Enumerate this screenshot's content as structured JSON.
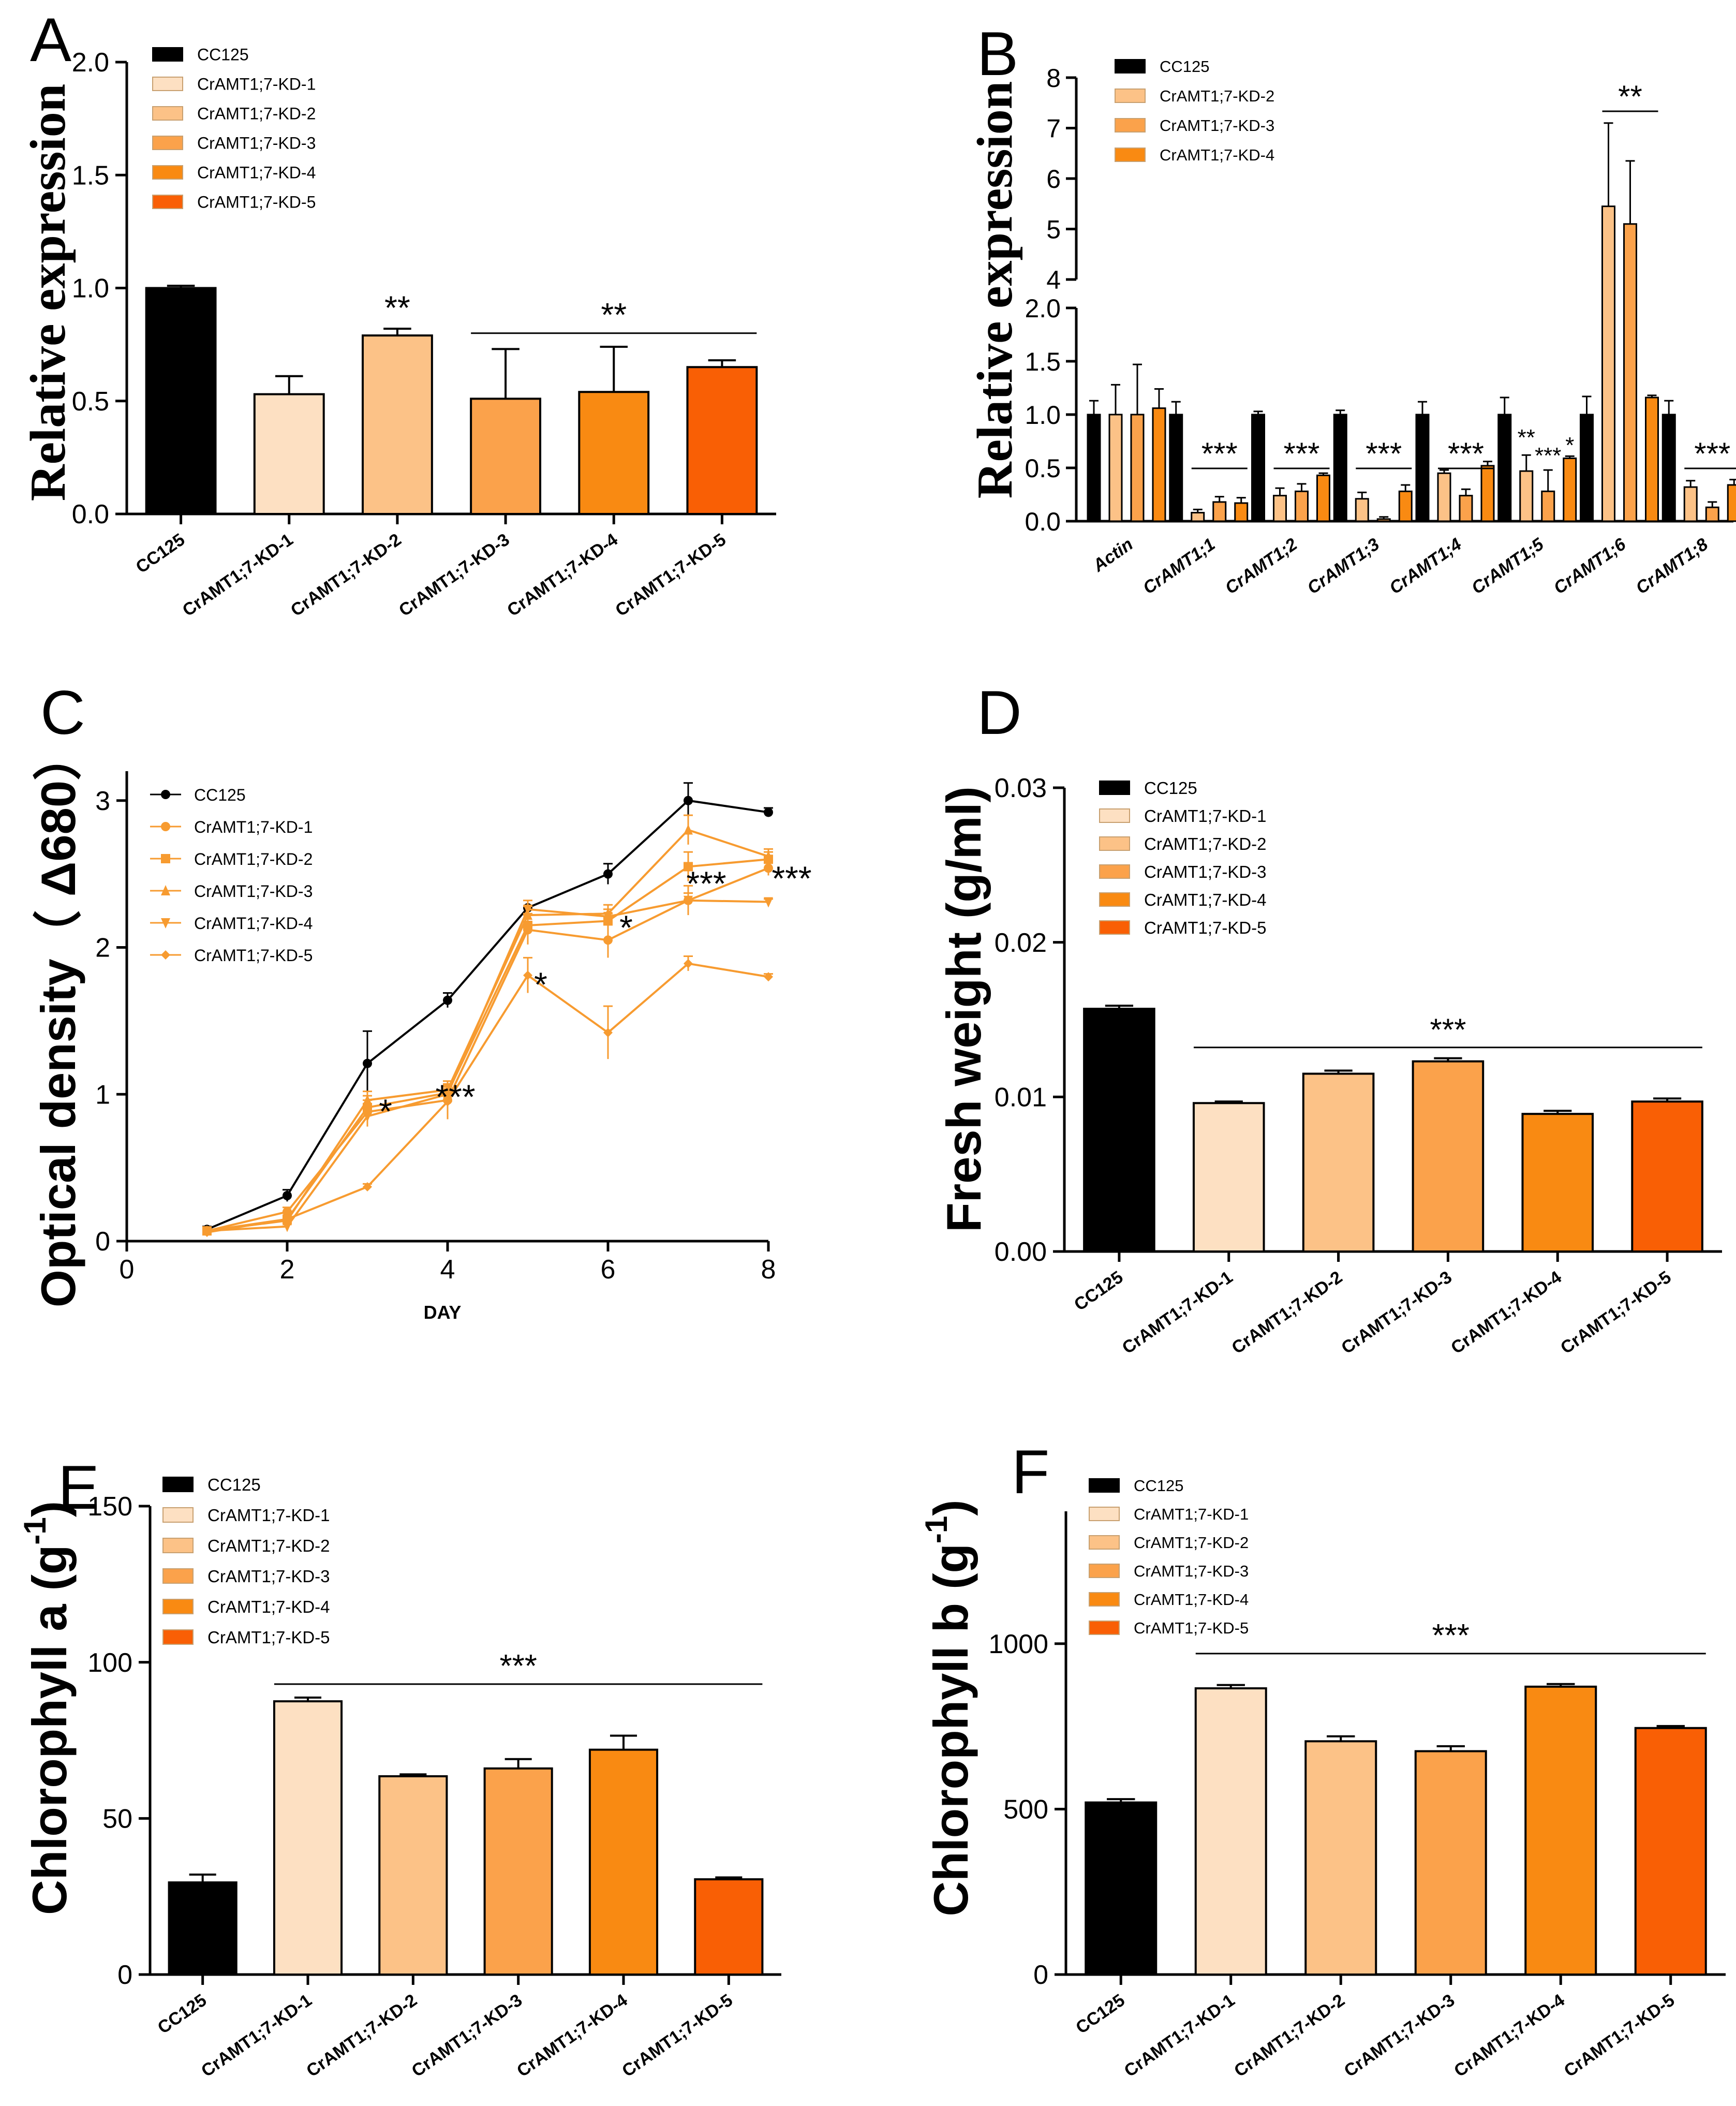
{
  "colors": {
    "black": "#000000",
    "kd1": "#FDE0C2",
    "kd2": "#FCC287",
    "kd3": "#FBA24B",
    "kd4": "#F98A12",
    "kd5": "#F95F05",
    "lineOrange": "#F79B30"
  },
  "chart_data": [
    {
      "id": "A",
      "panel_label": "A",
      "type": "bar",
      "title": "",
      "ylabel": "Relative expression",
      "xlabel": "",
      "categories": [
        "CC125",
        "CrAMT1;7-KD-1",
        "CrAMT1;7-KD-2",
        "CrAMT1;7-KD-3",
        "CrAMT1;7-KD-4",
        "CrAMT1;7-KD-5"
      ],
      "values": [
        1.0,
        0.53,
        0.79,
        0.51,
        0.54,
        0.65
      ],
      "errors": [
        0.01,
        0.08,
        0.03,
        0.22,
        0.2,
        0.03
      ],
      "ylim": [
        0,
        2.0
      ],
      "yticks": [
        0.0,
        0.5,
        1.0,
        1.5,
        2.0
      ],
      "ytick_labels": [
        "0.0",
        "0.5",
        "1.0",
        "1.5",
        "2.0"
      ],
      "legend": [
        "CC125",
        "CrAMT1;7-KD-1",
        "CrAMT1;7-KD-2",
        "CrAMT1;7-KD-3",
        "CrAMT1;7-KD-4",
        "CrAMT1;7-KD-5"
      ],
      "legend_position": "top-left",
      "annotations": [
        {
          "text": "**",
          "over": [
            2,
            2
          ],
          "value": 0.83
        },
        {
          "text": "**",
          "over": [
            3,
            5
          ],
          "value": 0.8
        }
      ]
    },
    {
      "id": "B",
      "panel_label": "B",
      "type": "bar",
      "title": "",
      "ylabel": "Relative expression",
      "xlabel": "",
      "categories": [
        "Actin",
        "CrAMT1;1",
        "CrAMT1;2",
        "CrAMT1;3",
        "CrAMT1;4",
        "CrAMT1;5",
        "CrAMT1;6",
        "CrAMT1;8"
      ],
      "series": [
        {
          "name": "CC125",
          "values": [
            1.0,
            1.0,
            1.0,
            1.0,
            1.0,
            1.0,
            1.0,
            1.0
          ],
          "errors": [
            0.13,
            0.12,
            0.03,
            0.04,
            0.12,
            0.16,
            0.17,
            0.13
          ]
        },
        {
          "name": "CrAMT1;7-KD-2",
          "values": [
            1.0,
            0.08,
            0.24,
            0.21,
            0.45,
            0.47,
            5.45,
            0.32
          ],
          "errors": [
            0.28,
            0.03,
            0.07,
            0.06,
            0.03,
            0.15,
            1.65,
            0.06
          ]
        },
        {
          "name": "CrAMT1;7-KD-3",
          "values": [
            1.0,
            0.18,
            0.28,
            0.02,
            0.24,
            0.28,
            5.1,
            0.13
          ],
          "errors": [
            0.47,
            0.05,
            0.07,
            0.02,
            0.06,
            0.2,
            1.25,
            0.05
          ]
        },
        {
          "name": "CrAMT1;7-KD-4",
          "values": [
            1.06,
            0.17,
            0.43,
            0.28,
            0.52,
            0.59,
            1.16,
            0.34
          ],
          "errors": [
            0.18,
            0.05,
            0.02,
            0.06,
            0.04,
            0.02,
            0.02,
            0.05
          ]
        }
      ],
      "ylim": [
        0,
        8
      ],
      "axis_break": [
        2.0,
        4.0
      ],
      "yticks": [
        0.0,
        0.5,
        1.0,
        1.5,
        2.0,
        4,
        5,
        6,
        7,
        8
      ],
      "ytick_labels": [
        "0.0",
        "0.5",
        "1.0",
        "1.5",
        "2.0",
        "4",
        "5",
        "6",
        "7",
        "8"
      ],
      "legend": [
        "CC125",
        "CrAMT1;7-KD-2",
        "CrAMT1;7-KD-3",
        "CrAMT1;7-KD-4"
      ],
      "legend_position": "top-left",
      "annotations": [
        {
          "text": "***",
          "group": 1
        },
        {
          "text": "***",
          "group": 2
        },
        {
          "text": "***",
          "group": 3
        },
        {
          "text": "***",
          "group": 4
        },
        {
          "text": "**",
          "group": 5,
          "series": 1
        },
        {
          "text": "***",
          "group": 5,
          "series": 2
        },
        {
          "text": "*",
          "group": 5,
          "series": 3
        },
        {
          "text": "**",
          "group": 6
        },
        {
          "text": "***",
          "group": 7
        }
      ]
    },
    {
      "id": "C",
      "panel_label": "C",
      "type": "line",
      "title": "",
      "ylabel": "Optical density（ Δ680）",
      "xlabel": "DAY",
      "x": [
        1,
        2,
        3,
        4,
        5,
        6,
        7,
        8
      ],
      "series": [
        {
          "name": "CC125",
          "marker": "circle",
          "values": [
            0.08,
            0.31,
            1.21,
            1.64,
            2.27,
            2.5,
            3.0,
            2.92
          ],
          "errors": [
            0.02,
            0.04,
            0.22,
            0.05,
            0.0,
            0.07,
            0.12,
            0.03
          ]
        },
        {
          "name": "CrAMT1;7-KD-1",
          "marker": "circle",
          "values": [
            0.07,
            0.2,
            0.88,
            0.96,
            2.12,
            2.05,
            2.32,
            2.54
          ],
          "errors": [
            0.01,
            0.03,
            0.08,
            0.1,
            0.1,
            0.12,
            0.1,
            0.05
          ]
        },
        {
          "name": "CrAMT1;7-KD-2",
          "marker": "square",
          "values": [
            0.07,
            0.15,
            0.91,
            1.01,
            2.15,
            2.18,
            2.55,
            2.6
          ],
          "errors": [
            0.01,
            0.02,
            0.08,
            0.06,
            0.08,
            0.05,
            0.1,
            0.05
          ]
        },
        {
          "name": "CrAMT1;7-KD-3",
          "marker": "triangle-up",
          "values": [
            0.07,
            0.14,
            0.96,
            1.03,
            2.22,
            2.23,
            2.8,
            2.62
          ],
          "errors": [
            0.01,
            0.02,
            0.06,
            0.06,
            0.06,
            0.06,
            0.1,
            0.05
          ]
        },
        {
          "name": "CrAMT1;7-KD-4",
          "marker": "triangle-down",
          "values": [
            0.07,
            0.1,
            0.85,
            1.0,
            2.26,
            2.21,
            2.32,
            2.31
          ],
          "errors": [
            0.01,
            0.02,
            0.07,
            0.05,
            0.06,
            0.05,
            0.05,
            0.02
          ]
        },
        {
          "name": "CrAMT1;7-KD-5",
          "marker": "diamond",
          "values": [
            0.06,
            0.15,
            0.37,
            0.95,
            1.81,
            1.42,
            1.89,
            1.8
          ],
          "errors": [
            0.01,
            0.02,
            0.02,
            0.12,
            0.12,
            0.18,
            0.05,
            0.02
          ]
        }
      ],
      "xlim": [
        0,
        8
      ],
      "ylim": [
        0,
        3.2
      ],
      "xticks": [
        0,
        2,
        4,
        6,
        8
      ],
      "yticks": [
        0,
        1,
        2,
        3
      ],
      "legend": [
        "CC125",
        "CrAMT1;7-KD-1",
        "CrAMT1;7-KD-2",
        "CrAMT1;7-KD-3",
        "CrAMT1;7-KD-4",
        "CrAMT1;7-KD-5"
      ],
      "legend_position": "top-left",
      "annotations": [
        {
          "text": "*",
          "x": 3,
          "y": 0.9
        },
        {
          "text": "***",
          "x": 4,
          "y": 1.0
        },
        {
          "text": "*",
          "x": 5,
          "y": 1.81
        },
        {
          "text": "*",
          "x": 6,
          "y": 2.2
        },
        {
          "text": "***",
          "x": 7,
          "y": 2.55
        },
        {
          "text": "***",
          "x": 8,
          "y": 2.6
        }
      ]
    },
    {
      "id": "D",
      "panel_label": "D",
      "type": "bar",
      "title": "",
      "ylabel": "Fresh weight (g/ml)",
      "xlabel": "",
      "categories": [
        "CC125",
        "CrAMT1;7-KD-1",
        "CrAMT1;7-KD-2",
        "CrAMT1;7-KD-3",
        "CrAMT1;7-KD-4",
        "CrAMT1;7-KD-5"
      ],
      "values": [
        0.0157,
        0.0096,
        0.0115,
        0.0123,
        0.0089,
        0.0097
      ],
      "errors": [
        0.0002,
        0.0001,
        0.0002,
        0.0002,
        0.0002,
        0.0002
      ],
      "ylim": [
        0,
        0.03
      ],
      "yticks": [
        0,
        0.01,
        0.02,
        0.03
      ],
      "ytick_labels": [
        "0.00",
        "0.01",
        "0.02",
        "0.03"
      ],
      "legend": [
        "CC125",
        "CrAMT1;7-KD-1",
        "CrAMT1;7-KD-2",
        "CrAMT1;7-KD-3",
        "CrAMT1;7-KD-4",
        "CrAMT1;7-KD-5"
      ],
      "legend_position": "top-left",
      "annotations": [
        {
          "text": "***",
          "over": [
            1,
            5
          ],
          "value": 0.0132
        }
      ]
    },
    {
      "id": "E",
      "panel_label": "E",
      "type": "bar",
      "title": "",
      "ylabel": "Chlorophyll a (g-1)",
      "ylabel_main": "Chlorophyll a (g",
      "ylabel_sup": "-1",
      "ylabel_end": ")",
      "xlabel": "",
      "categories": [
        "CC125",
        "CrAMT1;7-KD-1",
        "CrAMT1;7-KD-2",
        "CrAMT1;7-KD-3",
        "CrAMT1;7-KD-4",
        "CrAMT1;7-KD-5"
      ],
      "values": [
        29.5,
        87.5,
        63.5,
        66,
        72,
        30.5
      ],
      "errors": [
        2.5,
        1.2,
        0.6,
        3.0,
        4.5,
        0.6
      ],
      "ylim": [
        0,
        150
      ],
      "yticks": [
        0,
        50,
        100,
        150
      ],
      "ytick_labels": [
        "0",
        "50",
        "100",
        "150"
      ],
      "legend": [
        "CC125",
        "CrAMT1;7-KD-1",
        "CrAMT1;7-KD-2",
        "CrAMT1;7-KD-3",
        "CrAMT1;7-KD-4",
        "CrAMT1;7-KD-5"
      ],
      "legend_position": "top-left",
      "annotations": [
        {
          "text": "***",
          "over": [
            1,
            5
          ],
          "value": 93
        }
      ]
    },
    {
      "id": "F",
      "panel_label": "F",
      "type": "bar",
      "title": "",
      "ylabel": "Chlorophyll b (g-1)",
      "ylabel_main": "Chlorophyll b (g",
      "ylabel_sup": "-1",
      "ylabel_end": ")",
      "xlabel": "",
      "categories": [
        "CC125",
        "CrAMT1;7-KD-1",
        "CrAMT1;7-KD-2",
        "CrAMT1;7-KD-3",
        "CrAMT1;7-KD-4",
        "CrAMT1;7-KD-5"
      ],
      "values": [
        520,
        865,
        705,
        675,
        870,
        745
      ],
      "errors": [
        10,
        10,
        15,
        15,
        8,
        6
      ],
      "ylim": [
        0,
        1400
      ],
      "yticks": [
        0,
        500,
        1000
      ],
      "ytick_labels": [
        "0",
        "500",
        "1000"
      ],
      "legend": [
        "CC125",
        "CrAMT1;7-KD-1",
        "CrAMT1;7-KD-2",
        "CrAMT1;7-KD-3",
        "CrAMT1;7-KD-4",
        "CrAMT1;7-KD-5"
      ],
      "legend_position": "top-left",
      "annotations": [
        {
          "text": "***",
          "over": [
            1,
            5
          ],
          "value": 970
        }
      ]
    }
  ]
}
